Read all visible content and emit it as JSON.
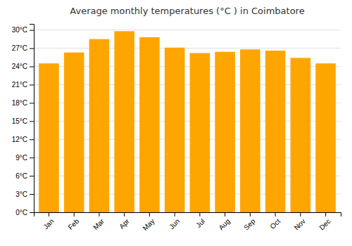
{
  "chart_data": {
    "type": "bar",
    "title": "Average monthly temperatures (°C ) in Coimbatore",
    "categories": [
      "Jan",
      "Feb",
      "Mar",
      "Apr",
      "May",
      "Jun",
      "Jul",
      "Aug",
      "Sep",
      "Oct",
      "Nov",
      "Dec"
    ],
    "values": [
      24.5,
      26.3,
      28.5,
      29.8,
      28.8,
      27.1,
      26.2,
      26.4,
      26.8,
      26.6,
      25.4,
      24.5
    ],
    "color": "#FFA500",
    "ylim": [
      0,
      31
    ],
    "yticks": [
      {
        "value": 0,
        "label": "0°C"
      },
      {
        "value": 3,
        "label": "3°C"
      },
      {
        "value": 6,
        "label": "6°C"
      },
      {
        "value": 9,
        "label": "9°C"
      },
      {
        "value": 12,
        "label": "12°C"
      },
      {
        "value": 15,
        "label": "15°C"
      },
      {
        "value": 18,
        "label": "18°C"
      },
      {
        "value": 21,
        "label": "21°C"
      },
      {
        "value": 24,
        "label": "24°C"
      },
      {
        "value": 27,
        "label": "27°C"
      },
      {
        "value": 30,
        "label": "30°C"
      }
    ],
    "grid": true
  }
}
